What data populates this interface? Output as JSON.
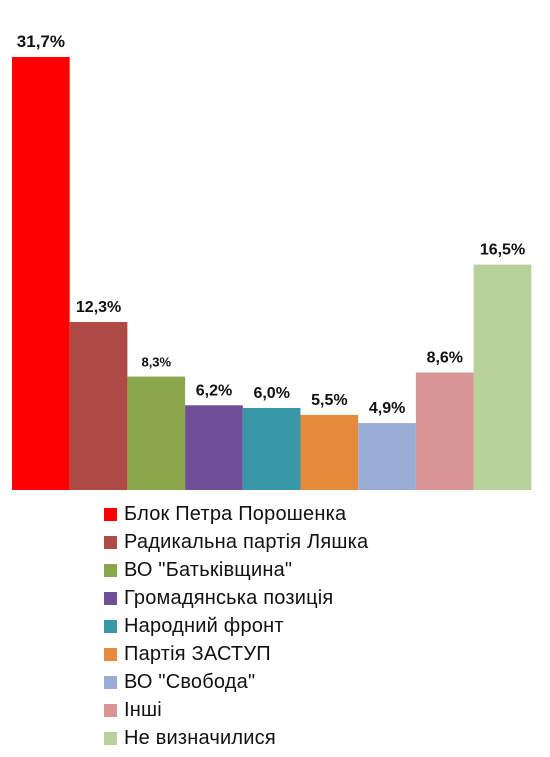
{
  "chart_data": {
    "type": "bar",
    "categories": [
      "Блок Петра Порошенка",
      "Радикальна партія Ляшка",
      "ВО \"Батьківщина\"",
      "Громадянська позиція",
      "Народний фронт",
      "Партія ЗАСТУП",
      "ВО \"Свобода\"",
      "Інші",
      "Не визначилися"
    ],
    "values": [
      31.7,
      12.3,
      8.3,
      6.2,
      6.0,
      5.5,
      4.9,
      8.6,
      16.5
    ],
    "data_labels": [
      "31,7%",
      "12,3%",
      "8,3%",
      "6,2%",
      "6,0%",
      "5,5%",
      "4,9%",
      "8,6%",
      "16,5%"
    ],
    "colors": [
      "#ff0000",
      "#b04a45",
      "#8aa64a",
      "#6e4f98",
      "#3a97aa",
      "#e68a3c",
      "#98acd6",
      "#d99494",
      "#b8d19a"
    ],
    "ylim": [
      0,
      31.7
    ],
    "grid": false,
    "legend_position": "bottom"
  }
}
